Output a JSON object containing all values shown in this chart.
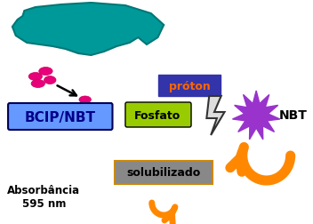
{
  "bg_color": "#ffffff",
  "cell_color": "#009999",
  "cell_outline": "#007777",
  "ellipse_color": "#e8007a",
  "bcip_box_color": "#6699ff",
  "bcip_text": "BCIP/NBT",
  "bcip_text_color": "#00008b",
  "fosfato_box_color": "#99cc00",
  "fosfato_text": "Fosfato",
  "fosfato_text_color": "#000000",
  "proton_box_color": "#3333aa",
  "proton_text": "próton",
  "proton_text_color": "#ff6600",
  "nbt_star_color": "#9933cc",
  "nbt_text": "NBT",
  "nbt_text_color": "#000000",
  "solubilizado_box_color": "#888888",
  "solubilizado_box_border": "#cc8800",
  "solubilizado_text": "solubilizado",
  "solubilizado_text_color": "#000000",
  "absorbancia_text": "Absorbância\n595 nm",
  "absorbancia_text_color": "#000000",
  "arrow_color": "#ff8800",
  "lightning_color": "#dddddd",
  "lightning_outline": "#333333"
}
